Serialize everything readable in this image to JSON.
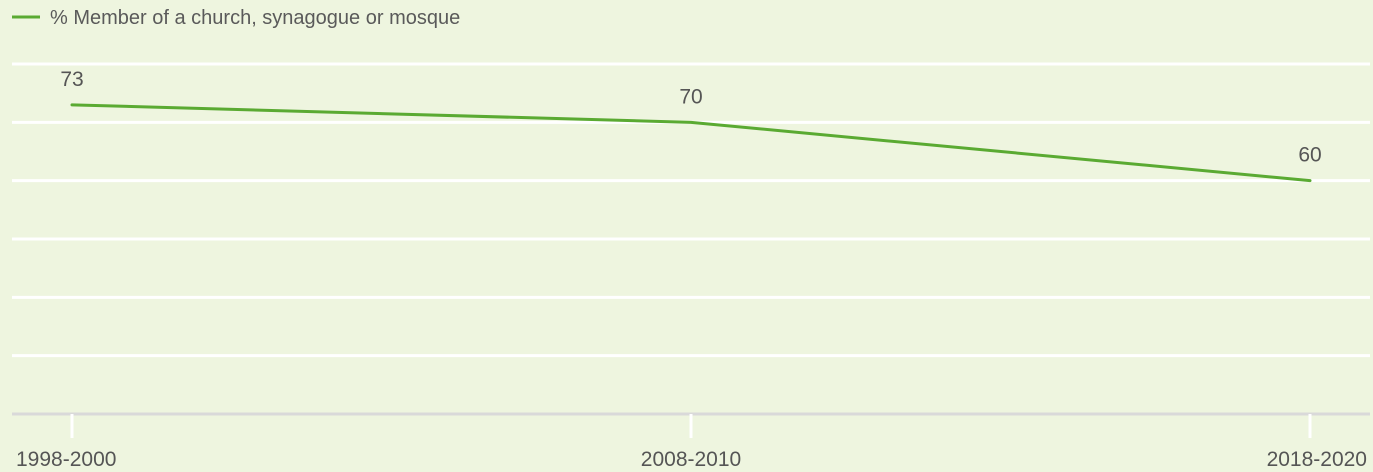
{
  "chart_data": {
    "type": "line",
    "categories": [
      "1998-2000",
      "2008-2010",
      "2018-2020"
    ],
    "series": [
      {
        "name": "% Member of a church, synagogue or mosque",
        "values": [
          73,
          70,
          60
        ],
        "color": "#5aaa32"
      }
    ],
    "data_labels": [
      "73",
      "70",
      "60"
    ],
    "ylim": [
      20,
      80
    ],
    "grid": true,
    "legend": "top-left",
    "title": "",
    "xlabel": "",
    "ylabel": "",
    "colors": {
      "background": "#eef5df",
      "gridline": "#ffffff",
      "baseline": "#d9d9d9",
      "text": "#555555"
    }
  }
}
